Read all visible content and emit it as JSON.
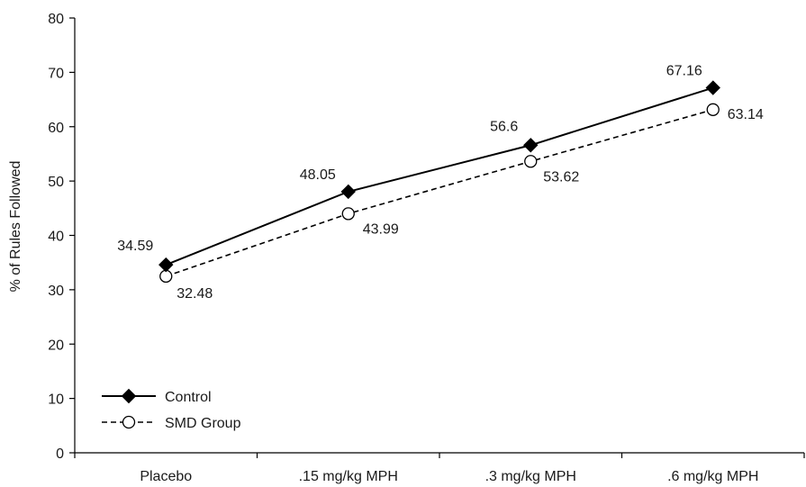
{
  "chart_data": {
    "type": "line",
    "title": "",
    "xlabel": "",
    "ylabel": "% of Rules Followed",
    "categories": [
      "Placebo",
      ".15 mg/kg MPH",
      ".3 mg/kg MPH",
      ".6 mg/kg MPH"
    ],
    "ylim": [
      0,
      80
    ],
    "yticks": [
      0,
      10,
      20,
      30,
      40,
      50,
      60,
      70,
      80
    ],
    "grid": false,
    "legend_position": "bottom-left",
    "series": [
      {
        "name": "Control",
        "values": [
          34.59,
          48.05,
          56.6,
          67.16
        ],
        "labels": [
          "34.59",
          "48.05",
          "56.6",
          "67.16"
        ],
        "marker": "filled-diamond",
        "line_style": "solid",
        "color": "#000000"
      },
      {
        "name": "SMD Group",
        "values": [
          32.48,
          43.99,
          53.62,
          63.14
        ],
        "labels": [
          "32.48",
          "43.99",
          "53.62",
          "63.14"
        ],
        "marker": "open-circle",
        "line_style": "dashed",
        "color": "#000000"
      }
    ]
  }
}
